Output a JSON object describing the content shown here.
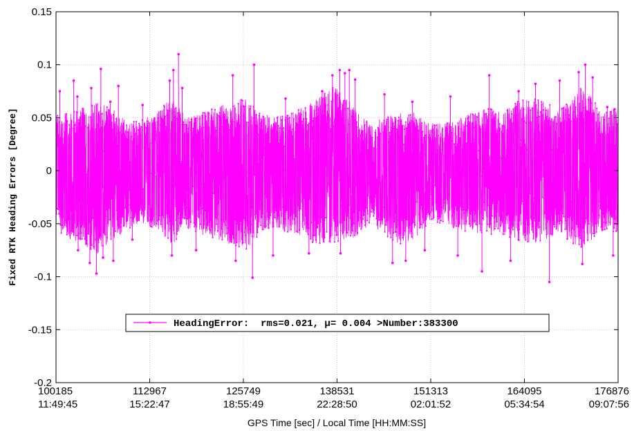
{
  "chart_data": {
    "type": "line",
    "ylabel": "Fixed RTK Heading Errors [Degree]",
    "xlabel": "GPS Time [sec] / Local Time [HH:MM:SS]",
    "xlim": [
      100185,
      176876
    ],
    "ylim": [
      -0.2,
      0.15
    ],
    "grid": true,
    "y_ticks": [
      "-0.2",
      "-0.15",
      "-0.1",
      "-0.05",
      "0",
      "0.05",
      "0.1",
      "0.15"
    ],
    "x_ticks": [
      {
        "value": 100185,
        "gps": "100185",
        "local": "11:49:45"
      },
      {
        "value": 112967,
        "gps": "112967",
        "local": "15:22:47"
      },
      {
        "value": 125749,
        "gps": "125749",
        "local": "18:55:49"
      },
      {
        "value": 138531,
        "gps": "138531",
        "local": "22:28:50"
      },
      {
        "value": 151313,
        "gps": "151313",
        "local": "02:01:52"
      },
      {
        "value": 164095,
        "gps": "164095",
        "local": "05:34:54"
      },
      {
        "value": 176876,
        "gps": "176876",
        "local": "09:07:56"
      }
    ],
    "legend_placement": "lower-center",
    "series": [
      {
        "name": "HeadingError:  rms=0.021, μ= 0.004 >Number:383300",
        "color": "#ff00ff",
        "marker": "dot",
        "envelope": {
          "x": [
            100185,
            102000,
            104000,
            106000,
            108000,
            110000,
            112000,
            114000,
            116000,
            118000,
            120000,
            122000,
            124000,
            126000,
            128000,
            130000,
            132000,
            134000,
            136000,
            138000,
            139500,
            141000,
            143000,
            145000,
            147000,
            149000,
            151000,
            153000,
            155000,
            157000,
            159000,
            161000,
            163000,
            165000,
            167000,
            169000,
            171000,
            172500,
            174000,
            175500,
            176876
          ],
          "upper": [
            0.058,
            0.055,
            0.06,
            0.065,
            0.058,
            0.045,
            0.05,
            0.055,
            0.072,
            0.05,
            0.055,
            0.06,
            0.065,
            0.07,
            0.055,
            0.05,
            0.055,
            0.06,
            0.07,
            0.08,
            0.075,
            0.06,
            0.045,
            0.05,
            0.055,
            0.055,
            0.045,
            0.045,
            0.05,
            0.055,
            0.06,
            0.055,
            0.065,
            0.07,
            0.065,
            0.06,
            0.075,
            0.085,
            0.06,
            0.055,
            0.06
          ],
          "lower": [
            -0.055,
            -0.065,
            -0.07,
            -0.08,
            -0.065,
            -0.055,
            -0.05,
            -0.055,
            -0.07,
            -0.055,
            -0.06,
            -0.065,
            -0.07,
            -0.075,
            -0.06,
            -0.055,
            -0.06,
            -0.065,
            -0.07,
            -0.068,
            -0.065,
            -0.065,
            -0.05,
            -0.06,
            -0.07,
            -0.065,
            -0.05,
            -0.05,
            -0.055,
            -0.06,
            -0.06,
            -0.06,
            -0.065,
            -0.07,
            -0.065,
            -0.06,
            -0.07,
            -0.075,
            -0.06,
            -0.055,
            -0.06
          ]
        },
        "peaks": [
          {
            "x": 100700,
            "y": 0.075
          },
          {
            "x": 102600,
            "y": 0.085
          },
          {
            "x": 103100,
            "y": 0.07
          },
          {
            "x": 105000,
            "y": 0.078
          },
          {
            "x": 106300,
            "y": 0.096
          },
          {
            "x": 107600,
            "y": 0.065
          },
          {
            "x": 108700,
            "y": 0.08
          },
          {
            "x": 112000,
            "y": 0.062
          },
          {
            "x": 115700,
            "y": 0.085
          },
          {
            "x": 116200,
            "y": 0.095
          },
          {
            "x": 116900,
            "y": 0.11
          },
          {
            "x": 117400,
            "y": 0.078
          },
          {
            "x": 124300,
            "y": 0.09
          },
          {
            "x": 127200,
            "y": 0.1
          },
          {
            "x": 131500,
            "y": 0.068
          },
          {
            "x": 136500,
            "y": 0.075
          },
          {
            "x": 137900,
            "y": 0.09
          },
          {
            "x": 138900,
            "y": 0.095
          },
          {
            "x": 139600,
            "y": 0.092
          },
          {
            "x": 140200,
            "y": 0.095
          },
          {
            "x": 141000,
            "y": 0.086
          },
          {
            "x": 145000,
            "y": 0.072
          },
          {
            "x": 148800,
            "y": 0.065
          },
          {
            "x": 154000,
            "y": 0.07
          },
          {
            "x": 159300,
            "y": 0.09
          },
          {
            "x": 163300,
            "y": 0.075
          },
          {
            "x": 165600,
            "y": 0.082
          },
          {
            "x": 168900,
            "y": 0.085
          },
          {
            "x": 171500,
            "y": 0.093
          },
          {
            "x": 172400,
            "y": 0.1
          },
          {
            "x": 173400,
            "y": 0.088
          },
          {
            "x": 175400,
            "y": 0.06
          },
          {
            "x": 176400,
            "y": 0.058
          }
        ],
        "troughs": [
          {
            "x": 103200,
            "y": -0.075
          },
          {
            "x": 104800,
            "y": -0.087
          },
          {
            "x": 105700,
            "y": -0.097
          },
          {
            "x": 106600,
            "y": -0.082
          },
          {
            "x": 108000,
            "y": -0.085
          },
          {
            "x": 110600,
            "y": -0.065
          },
          {
            "x": 116000,
            "y": -0.08
          },
          {
            "x": 119300,
            "y": -0.075
          },
          {
            "x": 124700,
            "y": -0.085
          },
          {
            "x": 127000,
            "y": -0.101
          },
          {
            "x": 129800,
            "y": -0.08
          },
          {
            "x": 134700,
            "y": -0.078
          },
          {
            "x": 139000,
            "y": -0.078
          },
          {
            "x": 146100,
            "y": -0.087
          },
          {
            "x": 147900,
            "y": -0.085
          },
          {
            "x": 150500,
            "y": -0.075
          },
          {
            "x": 155000,
            "y": -0.08
          },
          {
            "x": 158300,
            "y": -0.095
          },
          {
            "x": 162200,
            "y": -0.085
          },
          {
            "x": 167500,
            "y": -0.105
          },
          {
            "x": 172000,
            "y": -0.088
          },
          {
            "x": 176200,
            "y": -0.08
          }
        ]
      }
    ]
  }
}
